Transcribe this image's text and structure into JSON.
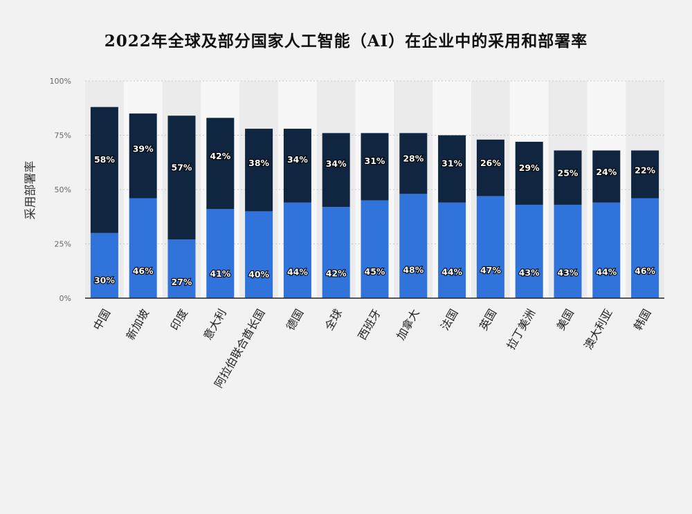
{
  "chart_data": {
    "type": "bar",
    "stacked": true,
    "title": "2022年全球及部分国家人工智能（AI）在企业中的采用和部署率",
    "ylabel": "采用部署率",
    "xlabel": "",
    "ylim": [
      0,
      100
    ],
    "yticks": [
      "0%",
      "25%",
      "50%",
      "75%",
      "100%"
    ],
    "grid": true,
    "categories": [
      "中国",
      "新加坡",
      "印度",
      "意大利",
      "阿拉伯联合酋长国",
      "德国",
      "全球",
      "西班牙",
      "加拿大",
      "法国",
      "英国",
      "拉丁美洲",
      "美国",
      "澳大利亚",
      "韩国"
    ],
    "series": [
      {
        "color": "#2f73db",
        "values": [
          30,
          46,
          27,
          41,
          40,
          44,
          42,
          45,
          48,
          44,
          47,
          43,
          43,
          44,
          46
        ]
      },
      {
        "color": "#0f2540",
        "values": [
          58,
          39,
          57,
          42,
          38,
          34,
          34,
          31,
          28,
          31,
          26,
          29,
          25,
          24,
          22
        ]
      }
    ]
  }
}
